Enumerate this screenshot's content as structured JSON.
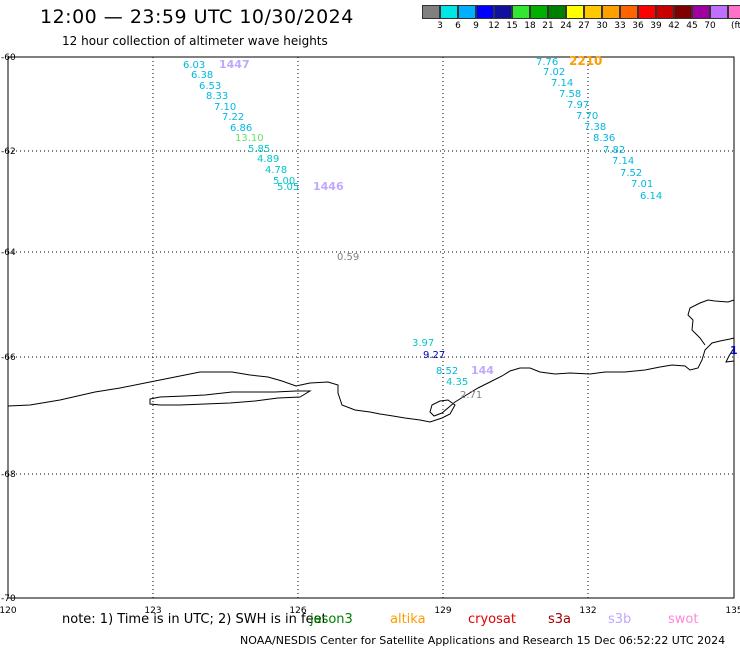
{
  "title": "12:00 — 23:59 UTC 10/30/2024",
  "subtitle": "12 hour collection of altimeter wave heights",
  "legend": {
    "unit": "(ft)",
    "colors": [
      "#808080",
      "#00e5e5",
      "#00b0ff",
      "#0000ff",
      "#1010a0",
      "#33e633",
      "#00b000",
      "#008000",
      "#ffff00",
      "#ffc800",
      "#ffa000",
      "#ff6400",
      "#ff0000",
      "#c80000",
      "#800000",
      "#a000a0",
      "#c070ff",
      "#ff70c8",
      "#000000"
    ],
    "labels": [
      "3",
      "6",
      "9",
      "12",
      "15",
      "18",
      "21",
      "24",
      "27",
      "30",
      "33",
      "36",
      "39",
      "42",
      "45",
      "70"
    ]
  },
  "axes": {
    "x_ticks": [
      "120",
      "123",
      "126",
      "129",
      "132",
      "135"
    ],
    "y_ticks": [
      "-60",
      "-62",
      "-64",
      "-66",
      "-68",
      "-70"
    ]
  },
  "observations": [
    {
      "label": "6.03",
      "color": "#00b8e0"
    },
    {
      "label": "6.38",
      "color": "#00b8e0"
    },
    {
      "label": "6.53",
      "color": "#00b8e0"
    },
    {
      "label": "8.33",
      "color": "#00b8e0"
    },
    {
      "label": "7.10",
      "color": "#00b8e0"
    },
    {
      "label": "7.22",
      "color": "#00b8e0"
    },
    {
      "label": "6.86",
      "color": "#00b8e0"
    },
    {
      "label": "13.10",
      "color": "#66e066"
    },
    {
      "label": "5.85",
      "color": "#00c8c8"
    },
    {
      "label": "4.89",
      "color": "#00c8c8"
    },
    {
      "label": "4.78",
      "color": "#00c8c8"
    },
    {
      "label": "5.00",
      "color": "#00c8c8"
    },
    {
      "label": "5.05",
      "color": "#00c8c8"
    },
    {
      "label": "7.76",
      "color": "#00b8e0"
    },
    {
      "label": "7.02",
      "color": "#00b8e0"
    },
    {
      "label": "7.14",
      "color": "#00b8e0"
    },
    {
      "label": "7.58",
      "color": "#00b8e0"
    },
    {
      "label": "7.97",
      "color": "#00b8e0"
    },
    {
      "label": "7.70",
      "color": "#00b8e0"
    },
    {
      "label": "7.38",
      "color": "#00b8e0"
    },
    {
      "label": "8.36",
      "color": "#00b8e0"
    },
    {
      "label": "7.82",
      "color": "#00b8e0"
    },
    {
      "label": "7.14",
      "color": "#00b8e0"
    },
    {
      "label": "7.52",
      "color": "#00b8e0"
    },
    {
      "label": "7.01",
      "color": "#00b8e0"
    },
    {
      "label": "6.14",
      "color": "#00b8e0"
    },
    {
      "label": "0.59",
      "color": "#808080"
    },
    {
      "label": "3.97",
      "color": "#00c8c8"
    },
    {
      "label": "9.27",
      "color": "#0000c0"
    },
    {
      "label": "8.52",
      "color": "#00b8e0"
    },
    {
      "label": "4.35",
      "color": "#00c8c8"
    },
    {
      "label": "2.71",
      "color": "#808080"
    }
  ],
  "time_labels": [
    {
      "label": "1447",
      "color": "#c0a8ff"
    },
    {
      "label": "1446",
      "color": "#c0a8ff"
    },
    {
      "label": "2210",
      "color": "#ff9a00"
    },
    {
      "label": "144",
      "color": "#c0a8ff"
    },
    {
      "label": "1",
      "color": "#0000c0"
    }
  ],
  "note": "note:  1) Time is in UTC;  2) SWH is in feet",
  "satellites": [
    {
      "name": "jason3",
      "color": "#008000"
    },
    {
      "name": "altika",
      "color": "#ff9a00"
    },
    {
      "name": "cryosat",
      "color": "#e00000"
    },
    {
      "name": "s3a",
      "color": "#a00000"
    },
    {
      "name": "s3b",
      "color": "#c0a8ff"
    },
    {
      "name": "swot",
      "color": "#ff88d8"
    }
  ],
  "footer": "NOAA/NESDIS Center for Satellite Applications and Research    15 Dec 06:52:22 UTC 2024"
}
